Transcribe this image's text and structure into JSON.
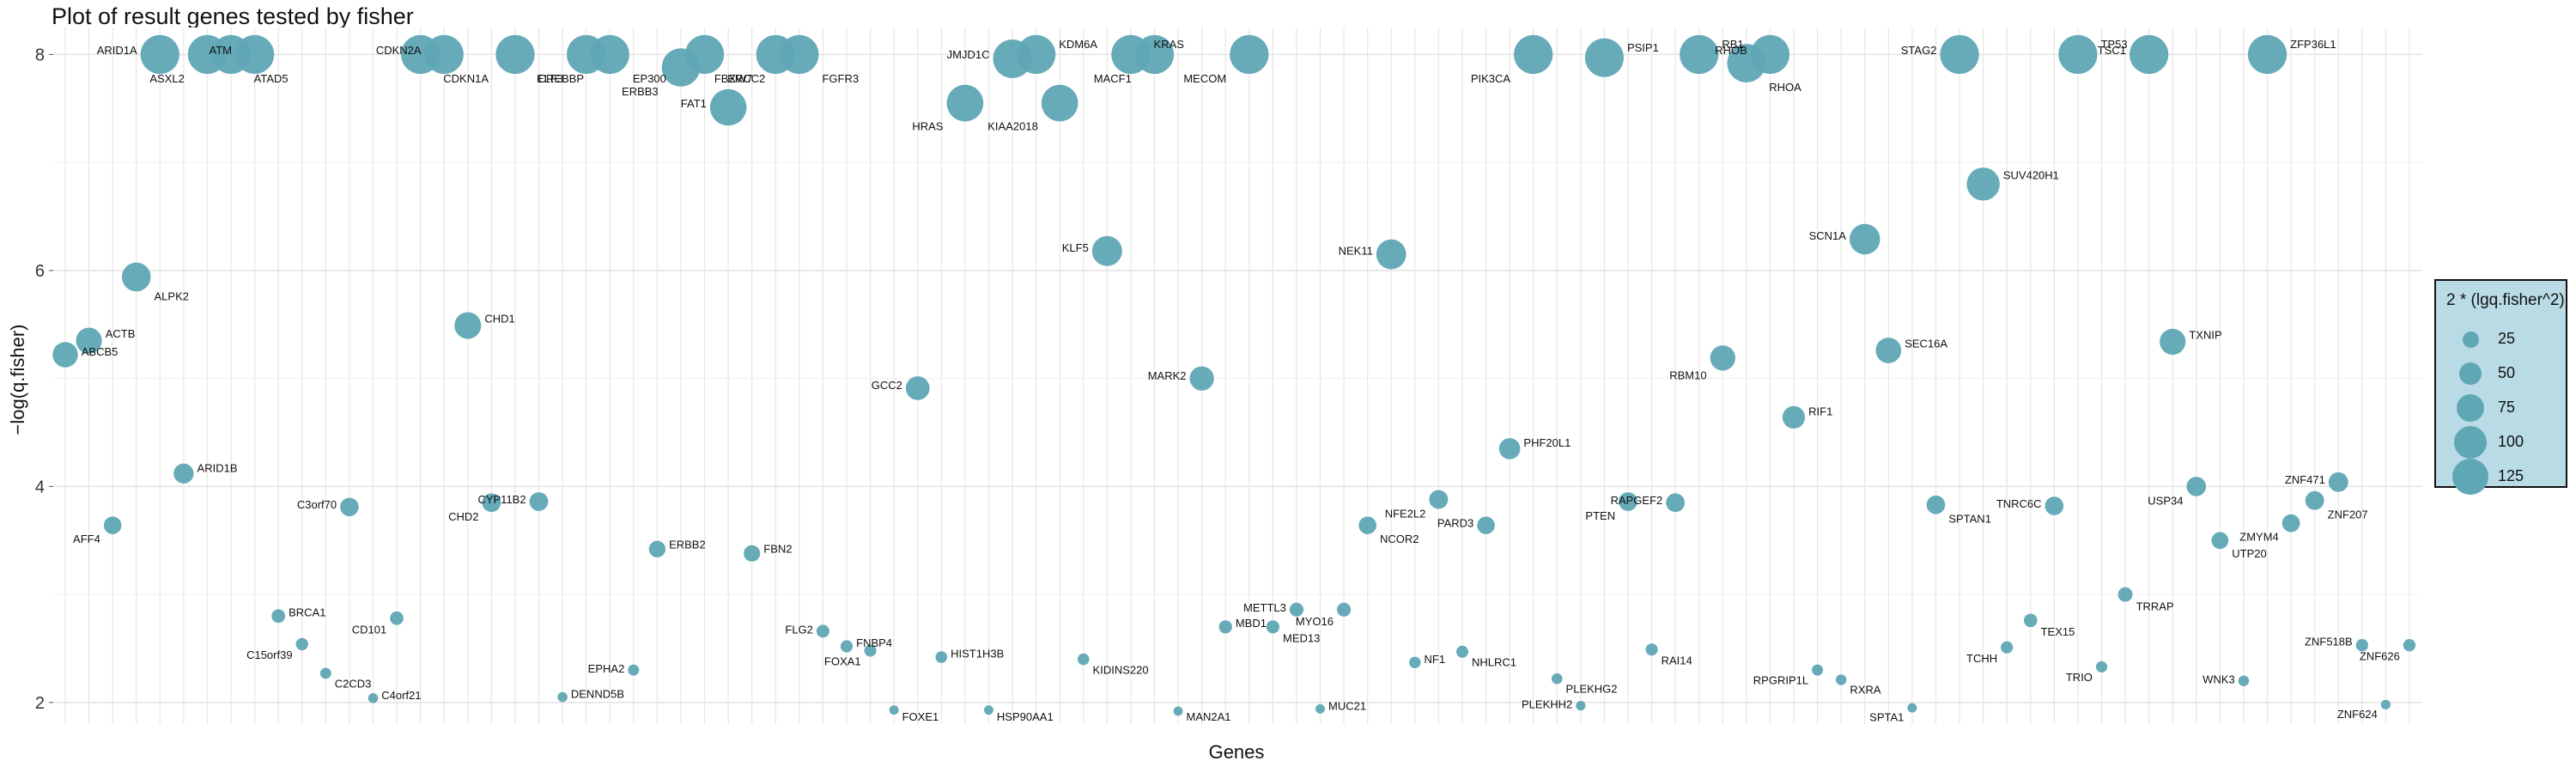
{
  "chart_data": {
    "type": "scatter",
    "title": "Plot of result genes tested by fisher",
    "xlabel": "Genes",
    "ylabel": "−log(q.fisher)",
    "ylim": [
      1.8,
      8.25
    ],
    "yticks": [
      2,
      4,
      6,
      8
    ],
    "grid": true,
    "point_color": "#5fa7b5",
    "legend": {
      "title": "2 * (lgq.fisher^2)",
      "position": "right",
      "entries": [
        25,
        50,
        75,
        100,
        125
      ]
    },
    "points": [
      {
        "gene": "ABCB5",
        "x": 1,
        "y": 5.22
      },
      {
        "gene": "ACTB",
        "x": 2,
        "y": 5.35
      },
      {
        "gene": "AFF4",
        "x": 3,
        "y": 3.64
      },
      {
        "gene": "ALPK2",
        "x": 4,
        "y": 5.94
      },
      {
        "gene": "ARID1A",
        "x": 5,
        "y": 8.0
      },
      {
        "gene": "ARID1B",
        "x": 6,
        "y": 4.12
      },
      {
        "gene": "ASXL2",
        "x": 7,
        "y": 8.0
      },
      {
        "gene": "ATAD5",
        "x": 8,
        "y": 8.0
      },
      {
        "gene": "ATM",
        "x": 9,
        "y": 8.0
      },
      {
        "gene": "BRCA1",
        "x": 10,
        "y": 2.8
      },
      {
        "gene": "C15orf39",
        "x": 11,
        "y": 2.54
      },
      {
        "gene": "C2CD3",
        "x": 12,
        "y": 2.27
      },
      {
        "gene": "C3orf70",
        "x": 13,
        "y": 3.81
      },
      {
        "gene": "C4orf21",
        "x": 14,
        "y": 2.04
      },
      {
        "gene": "CD101",
        "x": 15,
        "y": 2.78
      },
      {
        "gene": "CDKN1A",
        "x": 16,
        "y": 8.0
      },
      {
        "gene": "CDKN2A",
        "x": 17,
        "y": 8.0
      },
      {
        "gene": "CHD1",
        "x": 18,
        "y": 5.49
      },
      {
        "gene": "CHD2",
        "x": 19,
        "y": 3.85
      },
      {
        "gene": "CREBBP",
        "x": 20,
        "y": 8.0
      },
      {
        "gene": "CYP11B2",
        "x": 21,
        "y": 3.86
      },
      {
        "gene": "DENND5B",
        "x": 22,
        "y": 2.05
      },
      {
        "gene": "ELF3",
        "x": 23,
        "y": 8.0
      },
      {
        "gene": "EP300",
        "x": 24,
        "y": 8.0
      },
      {
        "gene": "EPHA2",
        "x": 25,
        "y": 2.3
      },
      {
        "gene": "ERBB2",
        "x": 26,
        "y": 3.42
      },
      {
        "gene": "ERBB3",
        "x": 27,
        "y": 7.88
      },
      {
        "gene": "ERCC2",
        "x": 28,
        "y": 8.0
      },
      {
        "gene": "FAT1",
        "x": 29,
        "y": 7.51
      },
      {
        "gene": "FBN2",
        "x": 30,
        "y": 3.38
      },
      {
        "gene": "FBXW7",
        "x": 31,
        "y": 8.0
      },
      {
        "gene": "FGFR3",
        "x": 32,
        "y": 8.0
      },
      {
        "gene": "FLG2",
        "x": 33,
        "y": 2.66
      },
      {
        "gene": "FNBP4",
        "x": 34,
        "y": 2.52
      },
      {
        "gene": "FOXA1",
        "x": 35,
        "y": 2.48
      },
      {
        "gene": "FOXE1",
        "x": 36,
        "y": 1.93
      },
      {
        "gene": "GCC2",
        "x": 37,
        "y": 4.91
      },
      {
        "gene": "HIST1H3B",
        "x": 38,
        "y": 2.42
      },
      {
        "gene": "HRAS",
        "x": 39,
        "y": 7.55
      },
      {
        "gene": "HSP90AA1",
        "x": 40,
        "y": 1.93
      },
      {
        "gene": "JMJD1C",
        "x": 41,
        "y": 7.96
      },
      {
        "gene": "KDM6A",
        "x": 42,
        "y": 8.0
      },
      {
        "gene": "KIAA2018",
        "x": 43,
        "y": 7.55
      },
      {
        "gene": "KIDINS220",
        "x": 44,
        "y": 2.4
      },
      {
        "gene": "KLF5",
        "x": 45,
        "y": 6.18
      },
      {
        "gene": "KRAS",
        "x": 46,
        "y": 8.0
      },
      {
        "gene": "MACF1",
        "x": 47,
        "y": 8.0
      },
      {
        "gene": "MAN2A1",
        "x": 48,
        "y": 1.92
      },
      {
        "gene": "MARK2",
        "x": 49,
        "y": 5.0
      },
      {
        "gene": "MBD1",
        "x": 50,
        "y": 2.7
      },
      {
        "gene": "MECOM",
        "x": 51,
        "y": 8.0
      },
      {
        "gene": "MED13",
        "x": 52,
        "y": 2.7
      },
      {
        "gene": "METTL3",
        "x": 53,
        "y": 2.86
      },
      {
        "gene": "MUC21",
        "x": 54,
        "y": 1.94
      },
      {
        "gene": "MYO16",
        "x": 55,
        "y": 2.86
      },
      {
        "gene": "NCOR2",
        "x": 56,
        "y": 3.64
      },
      {
        "gene": "NEK11",
        "x": 57,
        "y": 6.15
      },
      {
        "gene": "NF1",
        "x": 58,
        "y": 2.37
      },
      {
        "gene": "NFE2L2",
        "x": 59,
        "y": 3.88
      },
      {
        "gene": "NHLRC1",
        "x": 60,
        "y": 2.47
      },
      {
        "gene": "PARD3",
        "x": 61,
        "y": 3.64
      },
      {
        "gene": "PHF20L1",
        "x": 62,
        "y": 4.35
      },
      {
        "gene": "PIK3CA",
        "x": 63,
        "y": 8.0
      },
      {
        "gene": "PLEKHG2",
        "x": 64,
        "y": 2.22
      },
      {
        "gene": "PLEKHH2",
        "x": 65,
        "y": 1.97
      },
      {
        "gene": "PSIP1",
        "x": 66,
        "y": 7.97
      },
      {
        "gene": "PTEN",
        "x": 67,
        "y": 3.86
      },
      {
        "gene": "RAI14",
        "x": 68,
        "y": 2.49
      },
      {
        "gene": "RAPGEF2",
        "x": 69,
        "y": 3.85
      },
      {
        "gene": "RB1",
        "x": 70,
        "y": 8.0
      },
      {
        "gene": "RBM10",
        "x": 71,
        "y": 5.19
      },
      {
        "gene": "RHOA",
        "x": 72,
        "y": 7.92
      },
      {
        "gene": "RHOB",
        "x": 73,
        "y": 8.0
      },
      {
        "gene": "RIF1",
        "x": 74,
        "y": 4.64
      },
      {
        "gene": "RPGRIP1L",
        "x": 75,
        "y": 2.3
      },
      {
        "gene": "RXRA",
        "x": 76,
        "y": 2.21
      },
      {
        "gene": "SCN1A",
        "x": 77,
        "y": 6.29
      },
      {
        "gene": "SEC16A",
        "x": 78,
        "y": 5.26
      },
      {
        "gene": "SPTA1",
        "x": 79,
        "y": 1.95
      },
      {
        "gene": "SPTAN1",
        "x": 80,
        "y": 3.83
      },
      {
        "gene": "STAG2",
        "x": 81,
        "y": 8.0
      },
      {
        "gene": "SUV420H1",
        "x": 82,
        "y": 6.8
      },
      {
        "gene": "TCHH",
        "x": 83,
        "y": 2.51
      },
      {
        "gene": "TEX15",
        "x": 84,
        "y": 2.76
      },
      {
        "gene": "TNRC6C",
        "x": 85,
        "y": 3.82
      },
      {
        "gene": "TP53",
        "x": 86,
        "y": 8.0
      },
      {
        "gene": "TRIO",
        "x": 87,
        "y": 2.33
      },
      {
        "gene": "TRRAP",
        "x": 88,
        "y": 3.0
      },
      {
        "gene": "TSC1",
        "x": 89,
        "y": 8.0
      },
      {
        "gene": "TXNIP",
        "x": 90,
        "y": 5.34
      },
      {
        "gene": "USP34",
        "x": 91,
        "y": 4.0
      },
      {
        "gene": "UTP20",
        "x": 92,
        "y": 3.5
      },
      {
        "gene": "WNK3",
        "x": 93,
        "y": 2.2
      },
      {
        "gene": "ZFP36L1",
        "x": 94,
        "y": 8.0
      },
      {
        "gene": "ZMYM4",
        "x": 95,
        "y": 3.66
      },
      {
        "gene": "ZNF207",
        "x": 96,
        "y": 3.87
      },
      {
        "gene": "ZNF471",
        "x": 97,
        "y": 4.04
      },
      {
        "gene": "ZNF518B",
        "x": 98,
        "y": 2.53
      },
      {
        "gene": "ZNF624",
        "x": 99,
        "y": 1.98
      },
      {
        "gene": "ZNF626",
        "x": 100,
        "y": 2.53
      }
    ]
  }
}
